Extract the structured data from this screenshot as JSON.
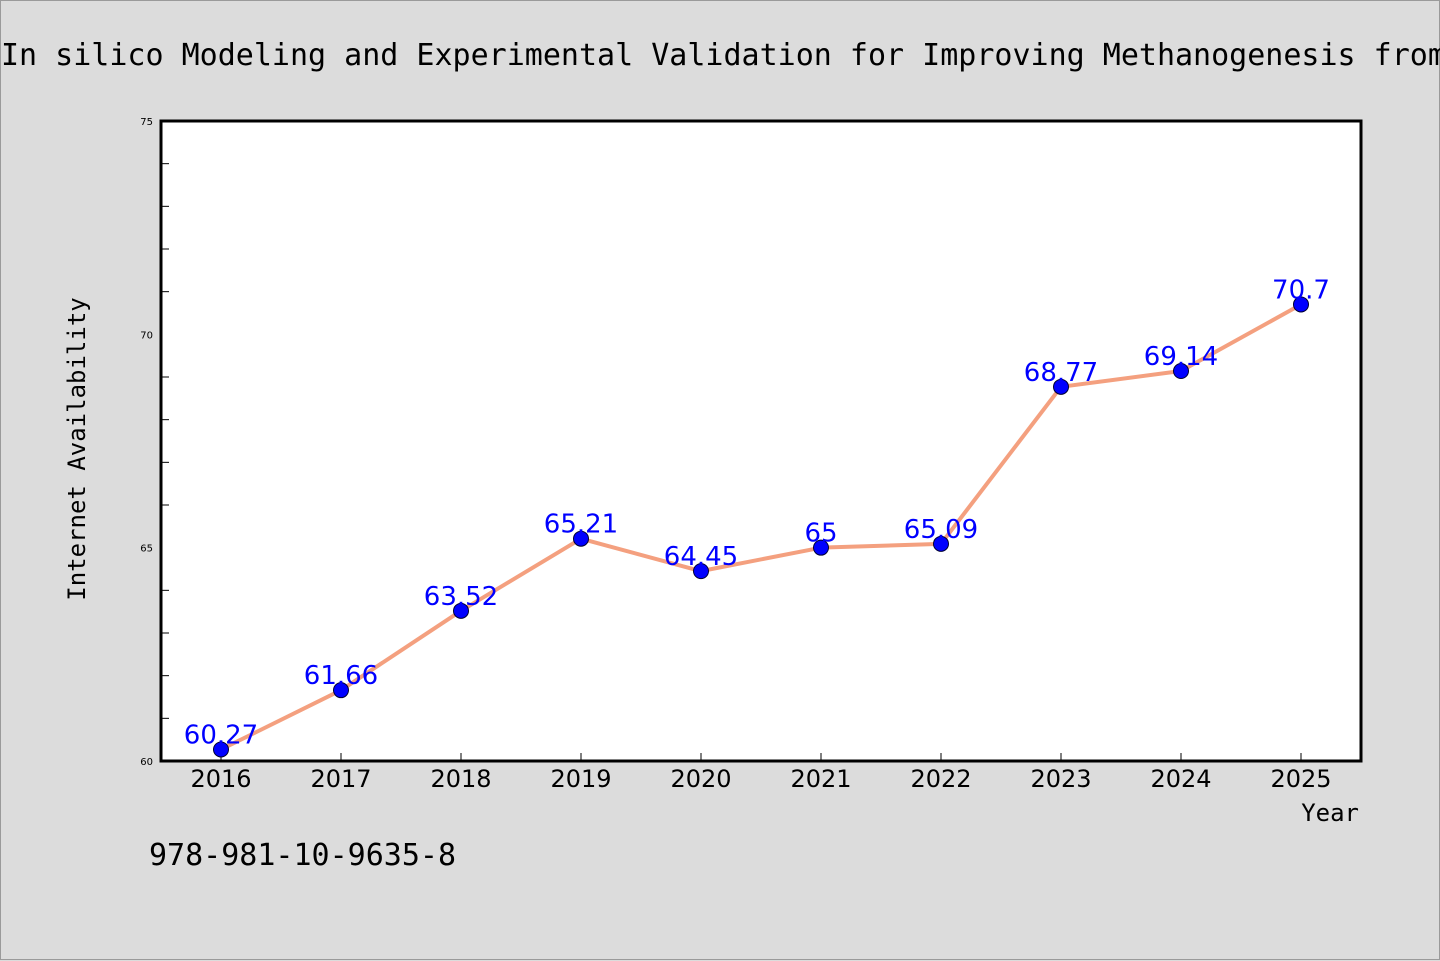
{
  "colors": {
    "background": "#dcdcdc",
    "plot_background": "#ffffff",
    "line": "#f4a07f",
    "marker": "#0000ff",
    "data_label": "#0000ff"
  },
  "footer": {
    "text": "978-981-10-9635-8"
  },
  "chart_data": {
    "type": "line",
    "title": "In silico Modeling and Experimental Validation for Improving Methanogenesis from",
    "xlabel": "Year",
    "ylabel": "Internet Availability",
    "categories": [
      "2016",
      "2017",
      "2018",
      "2019",
      "2020",
      "2021",
      "2022",
      "2023",
      "2024",
      "2025"
    ],
    "values": [
      60.27,
      61.66,
      63.52,
      65.21,
      64.45,
      65,
      65.09,
      68.77,
      69.14,
      70.7
    ],
    "data_labels": [
      "60.27",
      "61.66",
      "63.52",
      "65.21",
      "64.45",
      "65",
      "65.09",
      "68.77",
      "69.14",
      "70.7"
    ],
    "ylim": [
      60,
      75
    ],
    "yticks": [
      "60",
      "65",
      "70",
      "75"
    ],
    "grid": false,
    "legend": "none"
  }
}
